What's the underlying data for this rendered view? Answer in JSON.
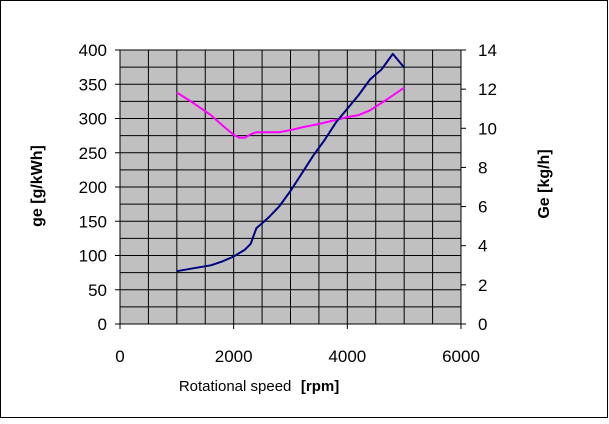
{
  "chart_data": {
    "type": "line",
    "title": "",
    "xlabel": {
      "text": "Rotational speed",
      "unit": "[rpm]"
    },
    "ylabel_left": "ge [g/kWh]",
    "ylabel_right": "Ge [kg/h]",
    "xlim": [
      0,
      6000
    ],
    "ylim_left": [
      0,
      400
    ],
    "ylim_right": [
      0,
      14
    ],
    "x_ticks": [
      "0",
      "2000",
      "4000",
      "6000"
    ],
    "y_left_ticks": [
      "0",
      "50",
      "100",
      "150",
      "200",
      "250",
      "300",
      "350",
      "400"
    ],
    "y_right_ticks": [
      "0",
      "2",
      "4",
      "6",
      "8",
      "10",
      "12",
      "14"
    ],
    "grid": true,
    "legend": "none",
    "series": [
      {
        "axis": "left",
        "color": "#ff00ff",
        "x": [
          1000,
          1300,
          1600,
          1800,
          2000,
          2100,
          2200,
          2300,
          2400,
          2600,
          2800,
          3000,
          3200,
          3500,
          3800,
          4000,
          4200,
          4400,
          4700,
          5000
        ],
        "y": [
          338,
          322,
          305,
          290,
          276,
          272,
          272,
          277,
          280,
          280,
          280,
          283,
          287,
          292,
          298,
          302,
          305,
          312,
          328,
          345
        ]
      },
      {
        "axis": "right",
        "color": "#000080",
        "x": [
          1000,
          1300,
          1600,
          1800,
          2000,
          2200,
          2300,
          2400,
          2500,
          2600,
          2800,
          3000,
          3200,
          3400,
          3600,
          3800,
          4000,
          4200,
          4400,
          4600,
          4800,
          5000
        ],
        "y": [
          2.7,
          2.85,
          3.0,
          3.2,
          3.45,
          3.8,
          4.1,
          4.9,
          5.15,
          5.4,
          6.0,
          6.8,
          7.7,
          8.6,
          9.4,
          10.3,
          11.0,
          11.7,
          12.5,
          13.0,
          13.8,
          13.1
        ]
      }
    ]
  }
}
